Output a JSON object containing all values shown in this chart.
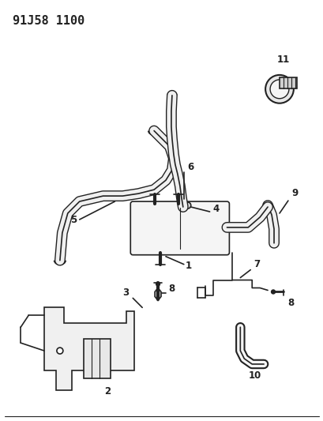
{
  "title": "91J58 1100",
  "bg_color": "#ffffff",
  "line_color": "#222222",
  "title_fontsize": 11,
  "label_fontsize": 8.5,
  "figsize": [
    4.1,
    5.33
  ],
  "dpi": 100
}
